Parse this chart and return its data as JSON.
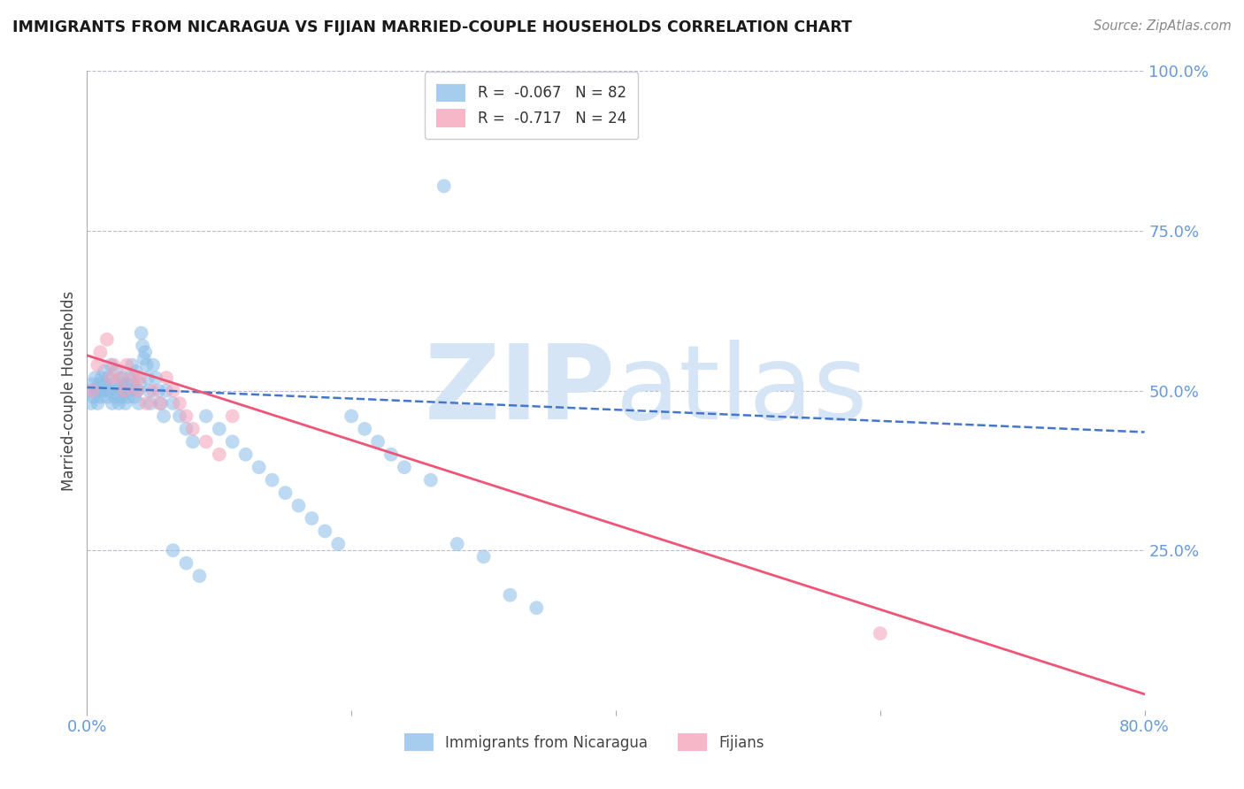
{
  "title": "IMMIGRANTS FROM NICARAGUA VS FIJIAN MARRIED-COUPLE HOUSEHOLDS CORRELATION CHART",
  "source": "Source: ZipAtlas.com",
  "ylabel": "Married-couple Households",
  "xlim": [
    0.0,
    0.8
  ],
  "ylim": [
    0.0,
    1.0
  ],
  "blue_color": "#89BDE8",
  "pink_color": "#F4A0B8",
  "trend_blue_color": "#4477CC",
  "trend_pink_color": "#EE5577",
  "grid_color": "#BBBBCC",
  "background_color": "#FFFFFF",
  "watermark_color": "#D5E5F5",
  "legend_label_blue": "Immigrants from Nicaragua",
  "legend_label_pink": "Fijians",
  "R_blue": -0.067,
  "N_blue": 82,
  "R_pink": -0.717,
  "N_pink": 24,
  "right_ytick_color": "#6699DD",
  "xtick_color": "#6699DD",
  "blue_trend_start_y": 0.505,
  "blue_trend_end_y": 0.435,
  "pink_trend_start_y": 0.555,
  "pink_trend_end_y": 0.025,
  "blue_x": [
    0.002,
    0.003,
    0.004,
    0.005,
    0.006,
    0.007,
    0.008,
    0.009,
    0.01,
    0.011,
    0.012,
    0.013,
    0.014,
    0.015,
    0.016,
    0.017,
    0.018,
    0.019,
    0.02,
    0.021,
    0.022,
    0.023,
    0.024,
    0.025,
    0.026,
    0.027,
    0.028,
    0.029,
    0.03,
    0.031,
    0.032,
    0.033,
    0.034,
    0.035,
    0.036,
    0.037,
    0.038,
    0.039,
    0.04,
    0.041,
    0.042,
    0.043,
    0.044,
    0.045,
    0.046,
    0.047,
    0.048,
    0.05,
    0.052,
    0.054,
    0.056,
    0.058,
    0.06,
    0.065,
    0.07,
    0.075,
    0.08,
    0.09,
    0.1,
    0.11,
    0.12,
    0.13,
    0.14,
    0.15,
    0.16,
    0.17,
    0.18,
    0.19,
    0.2,
    0.21,
    0.22,
    0.23,
    0.24,
    0.26,
    0.28,
    0.3,
    0.32,
    0.34,
    0.065,
    0.075,
    0.085,
    0.27
  ],
  "blue_y": [
    0.5,
    0.48,
    0.51,
    0.49,
    0.52,
    0.5,
    0.48,
    0.51,
    0.49,
    0.52,
    0.5,
    0.53,
    0.51,
    0.49,
    0.52,
    0.5,
    0.54,
    0.48,
    0.51,
    0.49,
    0.53,
    0.5,
    0.48,
    0.51,
    0.49,
    0.52,
    0.5,
    0.48,
    0.51,
    0.49,
    0.52,
    0.5,
    0.54,
    0.51,
    0.49,
    0.53,
    0.5,
    0.48,
    0.51,
    0.59,
    0.57,
    0.55,
    0.56,
    0.54,
    0.52,
    0.5,
    0.48,
    0.54,
    0.52,
    0.5,
    0.48,
    0.46,
    0.5,
    0.48,
    0.46,
    0.44,
    0.42,
    0.46,
    0.44,
    0.42,
    0.4,
    0.38,
    0.36,
    0.34,
    0.32,
    0.3,
    0.28,
    0.26,
    0.46,
    0.44,
    0.42,
    0.4,
    0.38,
    0.36,
    0.26,
    0.24,
    0.18,
    0.16,
    0.25,
    0.23,
    0.21,
    0.82
  ],
  "pink_x": [
    0.004,
    0.008,
    0.01,
    0.015,
    0.018,
    0.02,
    0.025,
    0.028,
    0.03,
    0.035,
    0.038,
    0.04,
    0.045,
    0.05,
    0.055,
    0.06,
    0.065,
    0.07,
    0.075,
    0.08,
    0.09,
    0.1,
    0.6,
    0.11
  ],
  "pink_y": [
    0.5,
    0.54,
    0.56,
    0.58,
    0.52,
    0.54,
    0.52,
    0.5,
    0.54,
    0.52,
    0.5,
    0.52,
    0.48,
    0.5,
    0.48,
    0.52,
    0.5,
    0.48,
    0.46,
    0.44,
    0.42,
    0.4,
    0.12,
    0.46
  ]
}
